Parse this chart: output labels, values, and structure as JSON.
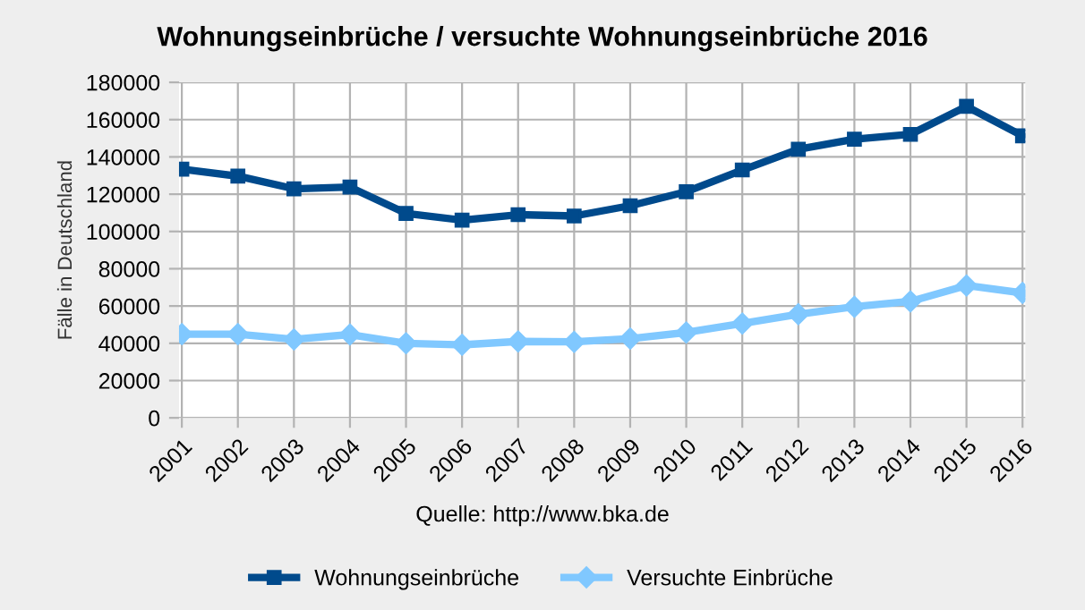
{
  "chart_data": {
    "type": "line",
    "title": "Wohnungseinbrüche / versuchte Wohnungseinbrüche 2016",
    "ylabel": "Fälle in Deutschland",
    "categories": [
      "2001",
      "2002",
      "2003",
      "2004",
      "2005",
      "2006",
      "2007",
      "2008",
      "2009",
      "2010",
      "2011",
      "2012",
      "2013",
      "2014",
      "2015",
      "2016"
    ],
    "series": [
      {
        "name": "Wohnungseinbrüche",
        "color": "#004a8c",
        "marker": "square",
        "values": [
          133400,
          129700,
          122900,
          123800,
          109700,
          106100,
          109000,
          108300,
          113800,
          121300,
          133000,
          144100,
          149500,
          152100,
          167100,
          151300
        ]
      },
      {
        "name": "Versuchte Einbrüche",
        "color": "#80c8ff",
        "marker": "diamond",
        "values": [
          44900,
          44900,
          42100,
          44700,
          40000,
          39200,
          41000,
          40800,
          42500,
          45800,
          50600,
          55600,
          59600,
          62500,
          71000,
          67000
        ]
      }
    ],
    "ylim": [
      0,
      180000
    ],
    "yticks": [
      0,
      20000,
      40000,
      60000,
      80000,
      100000,
      120000,
      140000,
      160000,
      180000
    ],
    "grid": true,
    "legend": "bottom",
    "line_style": "solid",
    "annotations": [
      "Quelle: http://www.bka.de"
    ]
  }
}
